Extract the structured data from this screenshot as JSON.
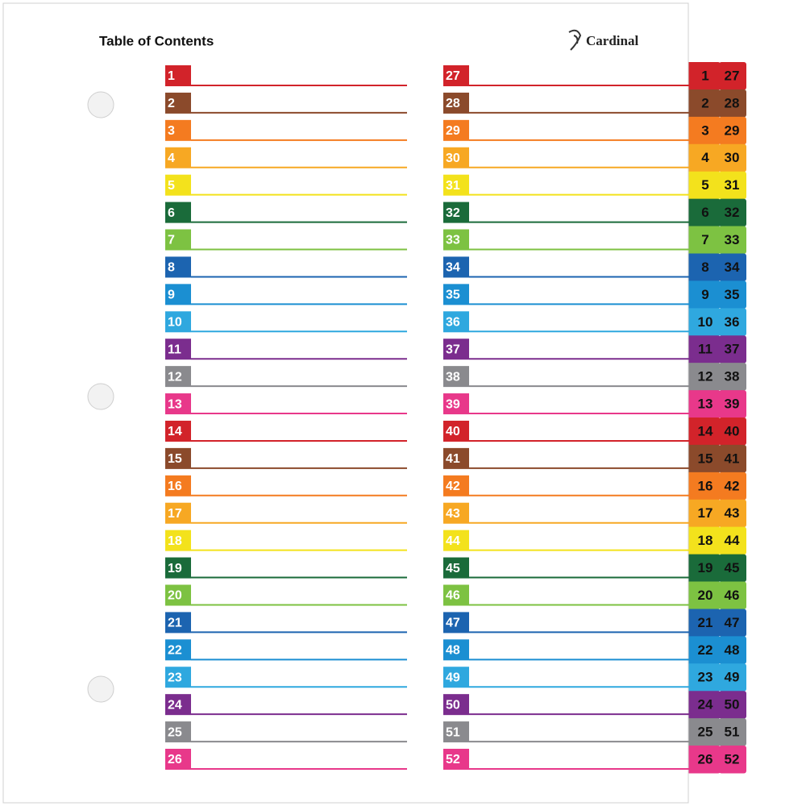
{
  "header": {
    "title": "Table of Contents",
    "brand": "Cardinal"
  },
  "colors": [
    "#d2232a",
    "#8b4a2b",
    "#f47b20",
    "#f7a823",
    "#f3e21c",
    "#1a6b3a",
    "#7dc242",
    "#1c64b0",
    "#1b8fd2",
    "#2fa8df",
    "#7b2d8e",
    "#8a8a8e",
    "#e8388a"
  ],
  "columns": [
    {
      "entries": [
        1,
        2,
        3,
        4,
        5,
        6,
        7,
        8,
        9,
        10,
        11,
        12,
        13,
        14,
        15,
        16,
        17,
        18,
        19,
        20,
        21,
        22,
        23,
        24,
        25,
        26
      ]
    },
    {
      "entries": [
        27,
        28,
        29,
        30,
        31,
        32,
        33,
        34,
        35,
        36,
        37,
        38,
        39,
        40,
        41,
        42,
        43,
        44,
        45,
        46,
        47,
        48,
        49,
        50,
        51,
        52
      ]
    }
  ]
}
